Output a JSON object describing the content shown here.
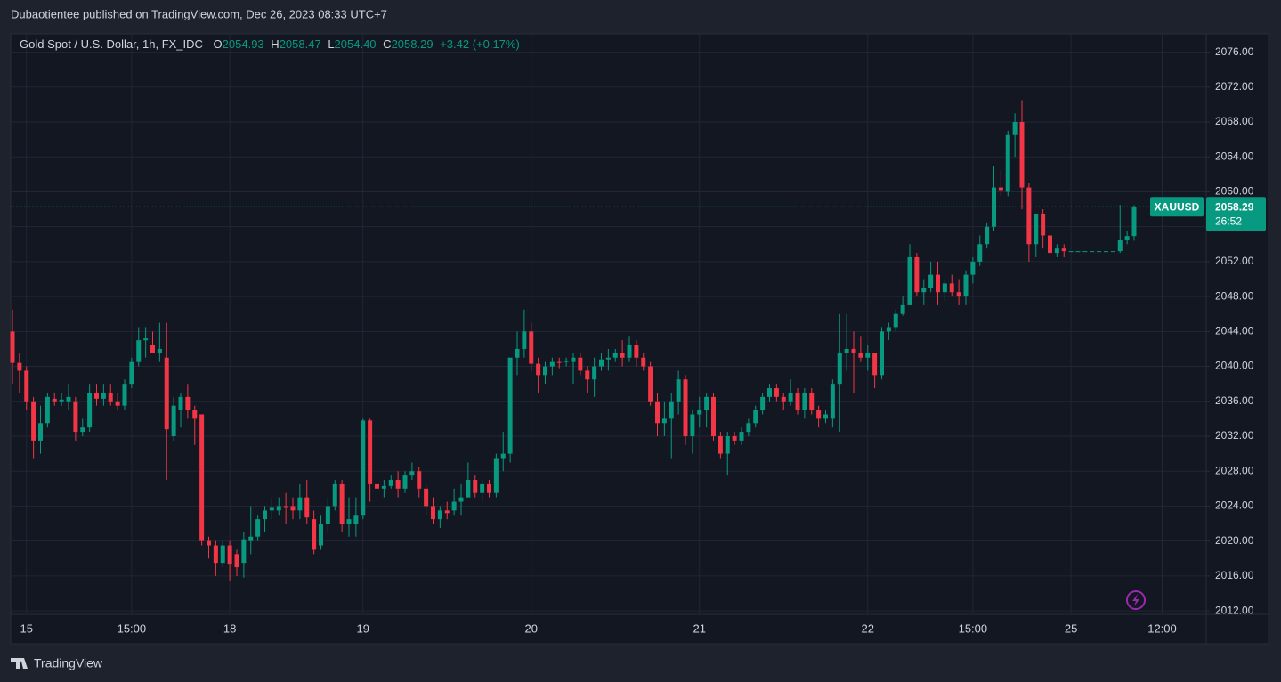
{
  "header": {
    "published": "Dubaotientee published on TradingView.com, Dec 26, 2023 08:33 UTC+7"
  },
  "footer": {
    "brand": "TradingView"
  },
  "chart_data": {
    "type": "candlestick",
    "title": "Gold Spot / U.S. Dollar, 1h, FX_IDC",
    "ohlc_header": [
      {
        "label": "O",
        "value": "2054.93"
      },
      {
        "label": "H",
        "value": "2058.47"
      },
      {
        "label": "L",
        "value": "2054.40"
      },
      {
        "label": "C",
        "value": "2058.29"
      }
    ],
    "change": "+3.42 (+0.17%)",
    "countdown": "26:52",
    "up_color": "#089981",
    "down_color": "#f23645",
    "grid": true,
    "ylim": [
      2011.6,
      2078.1
    ],
    "yticks": [
      {
        "value": 2012,
        "label": "2012.00"
      },
      {
        "value": 2016,
        "label": "2016.00"
      },
      {
        "value": 2020,
        "label": "2020.00"
      },
      {
        "value": 2024,
        "label": "2024.00"
      },
      {
        "value": 2028,
        "label": "2028.00"
      },
      {
        "value": 2032,
        "label": "2032.00"
      },
      {
        "value": 2036,
        "label": "2036.00"
      },
      {
        "value": 2040,
        "label": "2040.00"
      },
      {
        "value": 2044,
        "label": "2044.00"
      },
      {
        "value": 2048,
        "label": "2048.00"
      },
      {
        "value": 2052,
        "label": "2052.00"
      },
      {
        "value": 2056,
        "label": "2056.00"
      },
      {
        "value": 2060,
        "label": "2060.00"
      },
      {
        "value": 2064,
        "label": "2064.00"
      },
      {
        "value": 2068,
        "label": "2068.00"
      },
      {
        "value": 2072,
        "label": "2072.00"
      },
      {
        "value": 2076,
        "label": "2076.00"
      }
    ],
    "categories": [
      null,
      null,
      "15",
      null,
      null,
      null,
      null,
      null,
      null,
      null,
      null,
      null,
      null,
      null,
      null,
      null,
      null,
      "15:00",
      null,
      null,
      null,
      null,
      null,
      null,
      null,
      null,
      null,
      null,
      null,
      null,
      null,
      "18",
      null,
      null,
      null,
      null,
      null,
      null,
      null,
      null,
      null,
      null,
      null,
      null,
      null,
      null,
      null,
      null,
      null,
      null,
      "19",
      null,
      null,
      null,
      null,
      null,
      null,
      null,
      null,
      null,
      null,
      null,
      null,
      null,
      null,
      null,
      null,
      null,
      null,
      null,
      null,
      null,
      null,
      null,
      "20",
      null,
      null,
      null,
      null,
      null,
      null,
      null,
      null,
      null,
      null,
      null,
      null,
      null,
      null,
      null,
      null,
      null,
      null,
      null,
      null,
      null,
      null,
      null,
      "21",
      null,
      null,
      null,
      null,
      null,
      null,
      null,
      null,
      null,
      null,
      null,
      null,
      null,
      null,
      null,
      null,
      null,
      null,
      null,
      null,
      null,
      null,
      null,
      "22",
      null,
      null,
      null,
      null,
      null,
      null,
      null,
      null,
      null,
      null,
      null,
      null,
      null,
      null,
      "15:00",
      null,
      null,
      null,
      null,
      null,
      null,
      null,
      null,
      null,
      null,
      null,
      null,
      null,
      "25",
      null,
      null,
      null,
      null,
      null,
      null,
      null,
      null,
      null,
      null,
      null,
      null,
      "12:00"
    ],
    "series": [
      {
        "name": "XAUUSD",
        "open": [
          2044,
          2040.4,
          2039.5,
          2036,
          2031.5,
          2033.5,
          2036.3,
          2036,
          2036,
          2036,
          2032.5,
          2033,
          2037,
          2036.3,
          2037,
          2036,
          2035.5,
          2038,
          2040.5,
          2043,
          2042.5,
          2041.5,
          2041,
          2032,
          2035,
          2036.5,
          2035,
          2034.5,
          2020,
          2019.5,
          2017.5,
          2019.5,
          2018.5,
          2017.5,
          2020,
          2020.5,
          2022.5,
          2023.5,
          2023.5,
          2024,
          2024,
          2023.5,
          2025,
          2022.5,
          2019.5,
          2022,
          2024,
          2026.5,
          2022,
          2022,
          2023,
          2033.8,
          2026.5,
          2026,
          2026.3,
          2027,
          2026,
          2027.5,
          2028,
          2026,
          2024,
          2022.5,
          2023.5,
          2023.5,
          2024.5,
          2025,
          2027,
          2025.5,
          2026.5,
          2025.5,
          2029.5,
          2030,
          2041,
          2042,
          2044,
          2040.3,
          2039,
          2040,
          2040.5,
          2040.5,
          2040.5,
          2041,
          2039.5,
          2038.5,
          2040,
          2040.8,
          2041,
          2041.5,
          2041,
          2042.5,
          2041,
          2040,
          2036,
          2033.5,
          2034,
          2036,
          2038.5,
          2032,
          2034.5,
          2035,
          2036.5,
          2032,
          2030,
          2032,
          2031.5,
          2032.5,
          2033.5,
          2035,
          2036.5,
          2037.5,
          2036.5,
          2036,
          2037,
          2035,
          2037,
          2035,
          2034,
          2034,
          2038,
          2041.5,
          2042,
          2041.5,
          2041,
          2041.5,
          2039,
          2044,
          2044.5,
          2046,
          2047,
          2052.5,
          2048.5,
          2049,
          2050.5,
          2048.5,
          2049.5,
          2048.5,
          2048,
          2050.5,
          2052,
          2054,
          2056,
          2060.5,
          2060,
          2066.5,
          2068,
          2060.5,
          2054,
          2057.5,
          2055,
          2053,
          2053.5,
          2053.2,
          2053.2,
          2053.2,
          2053.2,
          2053.2,
          2053.2,
          2053.2,
          2053.2,
          2054.5,
          2054.93,
          null,
          null,
          null,
          null
        ],
        "high": [
          2046.5,
          2041.5,
          2040,
          2036.5,
          2035.5,
          2037,
          2037,
          2037,
          2038,
          2036.5,
          2034,
          2038,
          2038,
          2038,
          2038,
          2037,
          2038.5,
          2041,
          2044.5,
          2044.5,
          2044,
          2045,
          2045,
          2036.5,
          2037,
          2038,
          2035.5,
          2034.5,
          2020.5,
          2020,
          2020,
          2020,
          2019,
          2021,
          2024,
          2023,
          2024,
          2025,
          2025,
          2025.5,
          2025,
          2026.5,
          2027,
          2023.5,
          2023,
          2025,
          2027,
          2027,
          2025,
          2025,
          2034,
          2034,
          2028,
          2027,
          2027.5,
          2028,
          2028,
          2029,
          2028.5,
          2026.5,
          2025,
          2024,
          2024.5,
          2026,
          2026.5,
          2029,
          2027.5,
          2027,
          2027,
          2030,
          2032.5,
          2041,
          2044,
          2046.5,
          2045,
          2041,
          2040.5,
          2041,
          2041,
          2041,
          2041.5,
          2041.5,
          2040,
          2041,
          2041.5,
          2042,
          2042,
          2043,
          2043.5,
          2043,
          2041.5,
          2040.5,
          2037,
          2036,
          2037,
          2039.5,
          2039,
          2035,
          2036.5,
          2037,
          2037,
          2032.5,
          2032.5,
          2032.5,
          2033,
          2034,
          2035.5,
          2037,
          2038,
          2038,
          2037,
          2038.5,
          2037.5,
          2037.5,
          2037.5,
          2035.5,
          2035,
          2038.5,
          2046,
          2046,
          2044,
          2043.5,
          2042.5,
          2041.5,
          2044.5,
          2045,
          2046.5,
          2048,
          2054,
          2053,
          2050,
          2052,
          2052,
          2050,
          2050.5,
          2050,
          2051,
          2052.5,
          2055,
          2056.5,
          2063,
          2062.5,
          2067,
          2069,
          2070.5,
          2061,
          2057.5,
          2058,
          2057,
          2054,
          2054,
          2053.2,
          2053.2,
          2053.2,
          2053.2,
          2053.2,
          2053.2,
          2053.2,
          2058.5,
          2055.5,
          2058.47,
          null,
          null,
          null,
          null
        ],
        "low": [
          2038,
          2037,
          2035,
          2029.5,
          2030,
          2033,
          2035.5,
          2035.5,
          2035,
          2031.5,
          2032,
          2032.5,
          2035.5,
          2035.5,
          2035.5,
          2035,
          2035,
          2037.5,
          2040,
          2041,
          2041.5,
          2040.5,
          2027,
          2031.5,
          2033,
          2034,
          2031,
          2019.5,
          2018,
          2016,
          2017,
          2015.5,
          2016,
          2015.8,
          2018.5,
          2020,
          2021,
          2022.5,
          2023,
          2022,
          2022.5,
          2022.5,
          2022,
          2018.5,
          2019,
          2021,
          2023.5,
          2021,
          2020.5,
          2020.5,
          2022.5,
          2024.5,
          2025,
          2025,
          2026,
          2025,
          2025.5,
          2027,
          2025,
          2023,
          2022,
          2021.5,
          2022.5,
          2023,
          2023,
          2025,
          2025,
          2024.5,
          2025,
          2025,
          2028,
          2029,
          2039,
          2041,
          2039.5,
          2037,
          2038,
          2039,
          2039.8,
          2040,
          2038,
          2039,
          2037,
          2036.5,
          2039.5,
          2039.5,
          2040.5,
          2040,
          2040.5,
          2040,
          2039.5,
          2035.5,
          2032,
          2032,
          2029.5,
          2034.5,
          2031,
          2030,
          2033,
          2033,
          2031.5,
          2029.5,
          2027.5,
          2031,
          2031,
          2032,
          2033,
          2034.5,
          2036,
          2036,
          2035,
          2035.5,
          2034.5,
          2034,
          2034.5,
          2033,
          2033.5,
          2033,
          2032.5,
          2039.5,
          2037,
          2040.5,
          2039.5,
          2037.5,
          2038.5,
          2043,
          2044,
          2045.8,
          2047,
          2048,
          2047,
          2048.5,
          2047,
          2047.5,
          2048,
          2047,
          2047,
          2049.5,
          2051.5,
          2053.5,
          2055.5,
          2059.5,
          2059.5,
          2064,
          2058,
          2052,
          2052.5,
          2053.5,
          2052,
          2052.5,
          2052.5,
          2053.2,
          2053.2,
          2053.2,
          2053.2,
          2053.2,
          2053.2,
          2053.2,
          2053,
          2054,
          2054.4,
          null,
          null,
          null,
          null
        ],
        "close": [
          2040.4,
          2039.5,
          2036,
          2031.5,
          2033.5,
          2036.5,
          2036,
          2036.2,
          2036.5,
          2032.5,
          2033,
          2037,
          2036.3,
          2037,
          2036,
          2035.5,
          2038,
          2040.5,
          2043,
          2043.2,
          2041.5,
          2042,
          2032.8,
          2035.5,
          2036.5,
          2035,
          2034,
          2020,
          2019.5,
          2017.5,
          2019.5,
          2017.3,
          2017,
          2020.2,
          2020.5,
          2022.5,
          2023.5,
          2023.8,
          2024,
          2023.8,
          2023.5,
          2025,
          2022.7,
          2019,
          2022,
          2024,
          2026.5,
          2022,
          2022.5,
          2023,
          2033.8,
          2026.5,
          2026,
          2026.3,
          2027,
          2026,
          2027.5,
          2028,
          2026,
          2024,
          2022.5,
          2023.5,
          2023.2,
          2024.5,
          2025,
          2027,
          2025.5,
          2026.5,
          2025.5,
          2029.5,
          2030,
          2041,
          2042,
          2044,
          2040.3,
          2039,
          2040,
          2040.5,
          2040.4,
          2040.6,
          2041,
          2039.5,
          2038.5,
          2040,
          2040.8,
          2041,
          2041.5,
          2041,
          2042.5,
          2041,
          2040,
          2036,
          2033.5,
          2034,
          2036,
          2038.5,
          2032,
          2034.5,
          2035,
          2036.5,
          2032,
          2030,
          2032,
          2031.5,
          2032.5,
          2033.5,
          2035,
          2036.5,
          2037.5,
          2036.5,
          2036,
          2037,
          2035,
          2037,
          2035,
          2034,
          2034.5,
          2038,
          2041.5,
          2042,
          2041.5,
          2041,
          2041.5,
          2039,
          2044,
          2044.5,
          2046,
          2047,
          2052.5,
          2048.5,
          2049,
          2050.5,
          2048.5,
          2049.5,
          2048.5,
          2048,
          2050.5,
          2052,
          2054,
          2056,
          2060.5,
          2060.2,
          2066.5,
          2068,
          2060.5,
          2054,
          2057.5,
          2055,
          2053,
          2053.5,
          2053.2,
          2053.2,
          2053.2,
          2053.2,
          2053.2,
          2053.2,
          2053.2,
          2053.2,
          2054.5,
          2054.93,
          2058.29,
          null,
          null,
          null,
          null
        ]
      }
    ]
  }
}
